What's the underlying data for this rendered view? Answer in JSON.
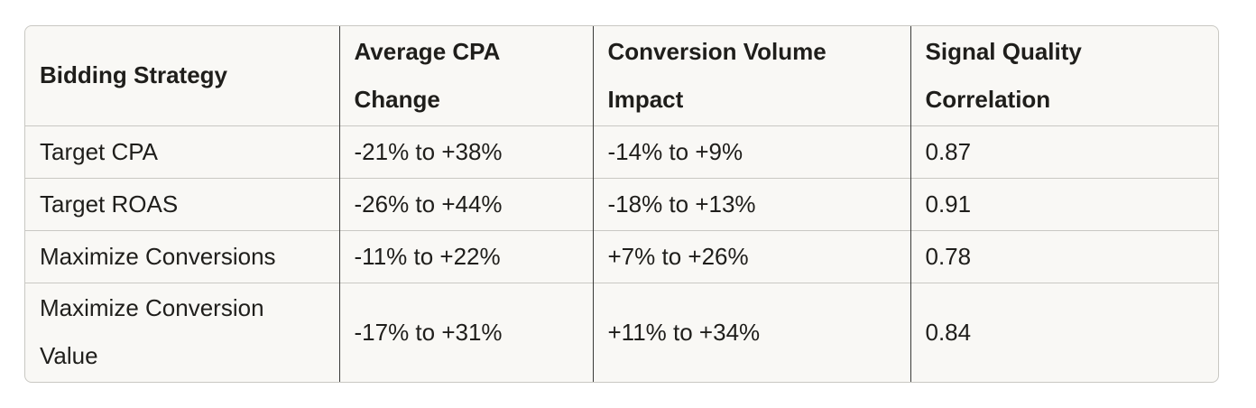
{
  "table": {
    "headers": [
      "Bidding Strategy",
      "Average CPA Change",
      "Conversion Volume Impact",
      "Signal Quality Correlation"
    ],
    "rows": [
      [
        "Target CPA",
        "-21% to +38%",
        "-14% to +9%",
        "0.87"
      ],
      [
        "Target ROAS",
        "-26% to +44%",
        "-18% to +13%",
        "0.91"
      ],
      [
        "Maximize Conversions",
        "-11% to +22%",
        "+7% to +26%",
        "0.78"
      ],
      [
        "Maximize Conversion Value",
        "-17% to +31%",
        "+11% to +34%",
        "0.84"
      ]
    ]
  }
}
